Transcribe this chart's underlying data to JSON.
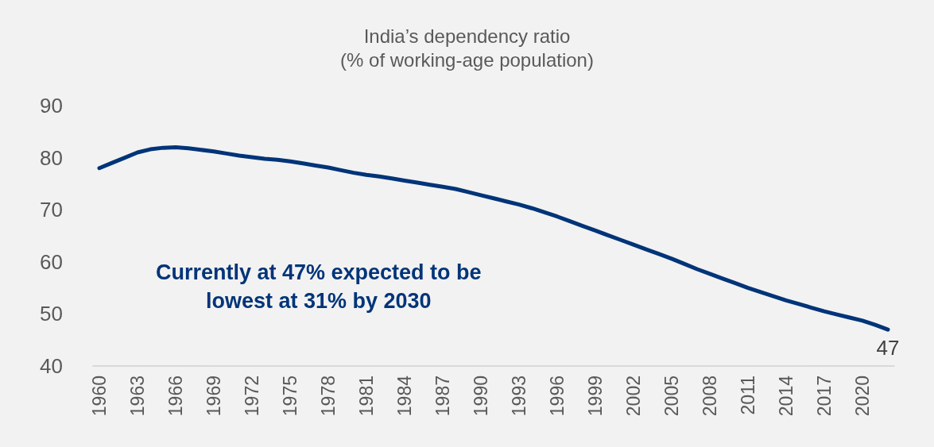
{
  "chart_data": {
    "type": "line",
    "title": "India’s dependency ratio",
    "subtitle": "(% of working-age population)",
    "categories": [
      "1960",
      null,
      null,
      "1963",
      null,
      null,
      "1966",
      null,
      null,
      "1969",
      null,
      null,
      "1972",
      null,
      null,
      "1975",
      null,
      null,
      "1978",
      null,
      null,
      "1981",
      null,
      null,
      "1984",
      null,
      null,
      "1987",
      null,
      null,
      "1990",
      null,
      null,
      "1993",
      null,
      null,
      "1996",
      null,
      null,
      "1999",
      null,
      null,
      "2002",
      null,
      null,
      "2005",
      null,
      null,
      "2008",
      null,
      null,
      "2011",
      null,
      null,
      "2014",
      null,
      null,
      "2017",
      null,
      null,
      "2020",
      null,
      null
    ],
    "series": [
      {
        "color": "#003478",
        "values": [
          78.0,
          79.0,
          80.0,
          81.0,
          81.6,
          81.9,
          82.0,
          81.8,
          81.5,
          81.2,
          80.8,
          80.4,
          80.1,
          79.8,
          79.6,
          79.3,
          78.9,
          78.5,
          78.1,
          77.6,
          77.1,
          76.7,
          76.4,
          76.0,
          75.6,
          75.2,
          74.8,
          74.4,
          74.0,
          73.4,
          72.8,
          72.2,
          71.6,
          71.0,
          70.3,
          69.5,
          68.7,
          67.8,
          66.9,
          66.0,
          65.1,
          64.2,
          63.3,
          62.4,
          61.5,
          60.6,
          59.6,
          58.6,
          57.7,
          56.8,
          55.9,
          55.0,
          54.2,
          53.4,
          52.6,
          51.9,
          51.2,
          50.5,
          49.9,
          49.3,
          48.7,
          47.9,
          47
        ],
        "value_labels": [
          null,
          null,
          null,
          null,
          null,
          null,
          null,
          null,
          null,
          null,
          null,
          null,
          null,
          null,
          null,
          null,
          null,
          null,
          null,
          null,
          null,
          null,
          null,
          null,
          null,
          null,
          null,
          null,
          null,
          null,
          null,
          null,
          null,
          null,
          null,
          null,
          null,
          null,
          null,
          null,
          null,
          null,
          null,
          null,
          null,
          null,
          null,
          null,
          null,
          null,
          null,
          null,
          null,
          null,
          null,
          null,
          null,
          null,
          null,
          null,
          null,
          null,
          "47"
        ]
      }
    ],
    "ylim": [
      40,
      90
    ],
    "yticks": [
      40,
      50,
      60,
      70,
      80,
      90
    ],
    "grid": false,
    "marker": "none",
    "line_style": "solid",
    "annotations": [
      "Currently at 47% expected to be\nlowest at 31% by 2030"
    ]
  }
}
